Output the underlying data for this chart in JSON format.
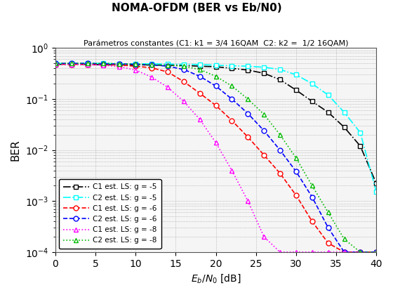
{
  "title": "NOMA-OFDM (BER vs Eb/N0)",
  "subtitle": "Parámetros constantes (C1: k1 = 3/4 16QAM  C2: k2 =  1/2 16QAM)",
  "xlabel": "$E_b/N_0$ [dB]",
  "ylabel": "BER",
  "xlim": [
    0,
    40
  ],
  "ylim_log": [
    -4,
    0
  ],
  "bg_color": "#f0f0f0",
  "series": [
    {
      "label": "C1 est. LS: g = -5",
      "color": "#000000",
      "linestyle": "-.",
      "marker": "s",
      "x": [
        0,
        2,
        4,
        6,
        8,
        10,
        12,
        14,
        16,
        18,
        20,
        22,
        24,
        26,
        28,
        30,
        32,
        34,
        36,
        38,
        40
      ],
      "y": [
        0.48,
        0.48,
        0.48,
        0.47,
        0.47,
        0.47,
        0.465,
        0.46,
        0.455,
        0.44,
        0.43,
        0.4,
        0.37,
        0.32,
        0.24,
        0.15,
        0.09,
        0.055,
        0.028,
        0.012,
        0.0022
      ]
    },
    {
      "label": "C2 est. LS: g = -5",
      "color": "#00ffff",
      "linestyle": "-.",
      "marker": "s",
      "x": [
        0,
        2,
        4,
        6,
        8,
        10,
        12,
        14,
        16,
        18,
        20,
        22,
        24,
        26,
        28,
        30,
        32,
        34,
        36,
        38,
        40
      ],
      "y": [
        0.5,
        0.5,
        0.5,
        0.5,
        0.49,
        0.49,
        0.49,
        0.485,
        0.48,
        0.475,
        0.46,
        0.45,
        0.44,
        0.42,
        0.38,
        0.3,
        0.2,
        0.12,
        0.055,
        0.022,
        0.0015
      ]
    },
    {
      "label": "C1 est. LS: g = -6",
      "color": "#ff0000",
      "linestyle": "--",
      "marker": "o",
      "x": [
        0,
        2,
        4,
        6,
        8,
        10,
        12,
        14,
        16,
        18,
        20,
        22,
        24,
        26,
        28,
        30,
        32,
        34,
        36,
        38,
        40
      ],
      "y": [
        0.48,
        0.48,
        0.48,
        0.47,
        0.465,
        0.44,
        0.41,
        0.34,
        0.22,
        0.13,
        0.075,
        0.038,
        0.018,
        0.008,
        0.0035,
        0.0013,
        0.0004,
        0.00015,
        0.0001,
        0.0001,
        0.0001
      ]
    },
    {
      "label": "C2 est. LS: g = -6",
      "color": "#0000ff",
      "linestyle": "--",
      "marker": "o",
      "x": [
        0,
        2,
        4,
        6,
        8,
        10,
        12,
        14,
        16,
        18,
        20,
        22,
        24,
        26,
        28,
        30,
        32,
        34,
        36,
        38,
        40
      ],
      "y": [
        0.5,
        0.5,
        0.5,
        0.49,
        0.49,
        0.48,
        0.47,
        0.44,
        0.38,
        0.28,
        0.18,
        0.1,
        0.052,
        0.024,
        0.01,
        0.0038,
        0.0012,
        0.0003,
        0.0001,
        0.0001,
        0.0001
      ]
    },
    {
      "label": "C1 est. LS: g = -8",
      "color": "#ff00ff",
      "linestyle": ":",
      "marker": "^",
      "x": [
        0,
        2,
        4,
        6,
        8,
        10,
        12,
        14,
        16,
        18,
        20,
        22,
        24,
        26,
        28,
        30,
        32,
        34,
        36,
        38,
        40
      ],
      "y": [
        0.48,
        0.48,
        0.47,
        0.46,
        0.43,
        0.37,
        0.27,
        0.17,
        0.09,
        0.04,
        0.014,
        0.004,
        0.001,
        0.0002,
        0.0001,
        0.0001,
        0.0001,
        0.0001,
        0.0001,
        0.0001,
        0.0001
      ]
    },
    {
      "label": "C2 est. LS: g = -8",
      "color": "#00bb00",
      "linestyle": ":",
      "marker": "^",
      "x": [
        0,
        2,
        4,
        6,
        8,
        10,
        12,
        14,
        16,
        18,
        20,
        22,
        24,
        26,
        28,
        30,
        32,
        34,
        36,
        38,
        40
      ],
      "y": [
        0.5,
        0.5,
        0.5,
        0.5,
        0.49,
        0.485,
        0.47,
        0.46,
        0.44,
        0.38,
        0.28,
        0.18,
        0.1,
        0.05,
        0.02,
        0.007,
        0.002,
        0.0006,
        0.00018,
        0.0001,
        0.0001
      ]
    }
  ]
}
